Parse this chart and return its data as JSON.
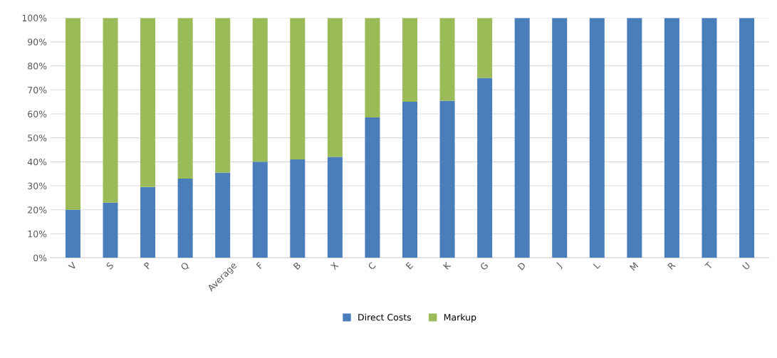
{
  "chart_data": {
    "type": "bar",
    "stacked": true,
    "categories": [
      "V",
      "S",
      "P",
      "Q",
      "Average",
      "F",
      "B",
      "X",
      "C",
      "E",
      "K",
      "G",
      "D",
      "J",
      "L",
      "M",
      "R",
      "T",
      "U"
    ],
    "series": [
      {
        "name": "Direct Costs",
        "color": "#4a7ebb",
        "values": [
          20,
          23,
          29.5,
          33,
          35.5,
          40,
          41,
          42,
          58.5,
          65,
          65.5,
          75,
          100,
          100,
          100,
          100,
          100,
          100,
          100
        ]
      },
      {
        "name": "Markup",
        "color": "#9bbb59",
        "values": [
          80,
          77,
          70.5,
          67,
          64.5,
          60,
          59,
          58,
          41.5,
          35,
          34.5,
          25,
          0,
          0,
          0,
          0,
          0,
          0,
          0
        ]
      }
    ],
    "ylim": [
      0,
      100
    ],
    "yticks": [
      {
        "value": 0,
        "label": "0%"
      },
      {
        "value": 10,
        "label": "10%"
      },
      {
        "value": 20,
        "label": "20%"
      },
      {
        "value": 30,
        "label": "30%"
      },
      {
        "value": 40,
        "label": "40%"
      },
      {
        "value": 50,
        "label": "50%"
      },
      {
        "value": 60,
        "label": "60%"
      },
      {
        "value": 70,
        "label": "70%"
      },
      {
        "value": 80,
        "label": "80%"
      },
      {
        "value": 90,
        "label": "90%"
      },
      {
        "value": 100,
        "label": "100%"
      }
    ],
    "grid": "y",
    "legend": "bottom"
  }
}
